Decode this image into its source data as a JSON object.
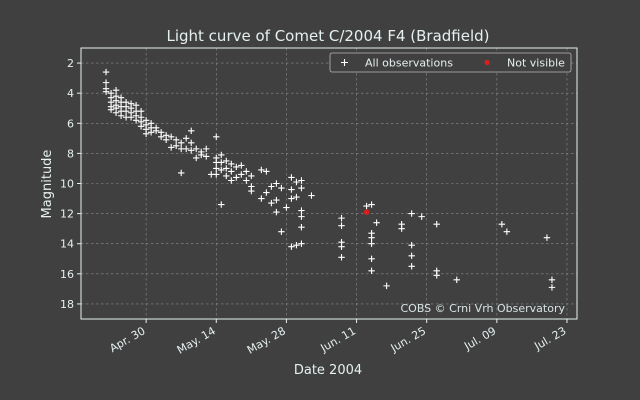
{
  "chart_data": {
    "type": "scatter",
    "title": "Light curve of Comet C/2004 F4 (Bradfield)",
    "xlabel": "Date 2004",
    "ylabel": "Magnitude",
    "x_axis": {
      "type": "date",
      "range": [
        "2004-04-17",
        "2004-07-25"
      ],
      "tick_dates": [
        "2004-04-30",
        "2004-05-14",
        "2004-05-28",
        "2004-06-11",
        "2004-06-25",
        "2004-07-09",
        "2004-07-23"
      ],
      "tick_labels": [
        "Apr. 30",
        "May. 14",
        "May. 28",
        "Jun. 11",
        "Jun. 25",
        "Jul. 09",
        "Jul. 23"
      ]
    },
    "y_axis": {
      "range": [
        1,
        19
      ],
      "inverted": true,
      "ticks": [
        2,
        4,
        6,
        8,
        10,
        12,
        14,
        16,
        18
      ],
      "tick_labels": [
        "2",
        "4",
        "6",
        "8",
        "10",
        "12",
        "14",
        "16",
        "18"
      ]
    },
    "grid": true,
    "legend": {
      "placement": "top-right"
    },
    "annotation": "COBS © Crni Vrh Observatory",
    "series": [
      {
        "name": "All observations",
        "marker": "plus",
        "color": "#ffffff",
        "points": [
          [
            "2004-04-22",
            2.6
          ],
          [
            "2004-04-22",
            3.3
          ],
          [
            "2004-04-22",
            3.7
          ],
          [
            "2004-04-22",
            3.9
          ],
          [
            "2004-04-23",
            4.0
          ],
          [
            "2004-04-23",
            4.3
          ],
          [
            "2004-04-23",
            4.6
          ],
          [
            "2004-04-23",
            4.9
          ],
          [
            "2004-04-23",
            5.1
          ],
          [
            "2004-04-24",
            3.8
          ],
          [
            "2004-04-24",
            4.2
          ],
          [
            "2004-04-24",
            4.5
          ],
          [
            "2004-04-24",
            4.8
          ],
          [
            "2004-04-24",
            5.0
          ],
          [
            "2004-04-24",
            5.3
          ],
          [
            "2004-04-25",
            4.3
          ],
          [
            "2004-04-25",
            4.6
          ],
          [
            "2004-04-25",
            4.9
          ],
          [
            "2004-04-25",
            5.2
          ],
          [
            "2004-04-25",
            5.5
          ],
          [
            "2004-04-26",
            4.6
          ],
          [
            "2004-04-26",
            4.9
          ],
          [
            "2004-04-26",
            5.2
          ],
          [
            "2004-04-26",
            5.6
          ],
          [
            "2004-04-27",
            4.7
          ],
          [
            "2004-04-27",
            5.0
          ],
          [
            "2004-04-27",
            5.3
          ],
          [
            "2004-04-27",
            5.6
          ],
          [
            "2004-04-28",
            4.8
          ],
          [
            "2004-04-28",
            5.2
          ],
          [
            "2004-04-28",
            5.5
          ],
          [
            "2004-04-28",
            5.8
          ],
          [
            "2004-04-29",
            5.2
          ],
          [
            "2004-04-29",
            5.6
          ],
          [
            "2004-04-29",
            5.9
          ],
          [
            "2004-04-29",
            6.2
          ],
          [
            "2004-04-30",
            5.8
          ],
          [
            "2004-04-30",
            6.1
          ],
          [
            "2004-04-30",
            6.4
          ],
          [
            "2004-04-30",
            6.7
          ],
          [
            "2004-05-01",
            6.0
          ],
          [
            "2004-05-01",
            6.3
          ],
          [
            "2004-05-01",
            6.6
          ],
          [
            "2004-05-02",
            6.3
          ],
          [
            "2004-05-02",
            6.5
          ],
          [
            "2004-05-03",
            6.6
          ],
          [
            "2004-05-03",
            6.9
          ],
          [
            "2004-05-04",
            6.8
          ],
          [
            "2004-05-04",
            7.1
          ],
          [
            "2004-05-05",
            6.9
          ],
          [
            "2004-05-05",
            7.6
          ],
          [
            "2004-05-06",
            7.1
          ],
          [
            "2004-05-06",
            7.5
          ],
          [
            "2004-05-07",
            7.3
          ],
          [
            "2004-05-07",
            7.7
          ],
          [
            "2004-05-07",
            9.3
          ],
          [
            "2004-05-08",
            7.0
          ],
          [
            "2004-05-08",
            7.7
          ],
          [
            "2004-05-09",
            6.5
          ],
          [
            "2004-05-09",
            7.3
          ],
          [
            "2004-05-09",
            7.8
          ],
          [
            "2004-05-10",
            7.7
          ],
          [
            "2004-05-10",
            8.3
          ],
          [
            "2004-05-11",
            7.9
          ],
          [
            "2004-05-11",
            8.1
          ],
          [
            "2004-05-12",
            7.7
          ],
          [
            "2004-05-12",
            8.2
          ],
          [
            "2004-05-13",
            9.4
          ],
          [
            "2004-05-14",
            6.9
          ],
          [
            "2004-05-14",
            8.3
          ],
          [
            "2004-05-14",
            8.6
          ],
          [
            "2004-05-14",
            9.0
          ],
          [
            "2004-05-14",
            9.4
          ],
          [
            "2004-05-15",
            8.1
          ],
          [
            "2004-05-15",
            8.6
          ],
          [
            "2004-05-15",
            9.1
          ],
          [
            "2004-05-15",
            11.4
          ],
          [
            "2004-05-16",
            8.5
          ],
          [
            "2004-05-16",
            9.0
          ],
          [
            "2004-05-16",
            9.5
          ],
          [
            "2004-05-17",
            8.7
          ],
          [
            "2004-05-17",
            9.2
          ],
          [
            "2004-05-17",
            9.8
          ],
          [
            "2004-05-18",
            8.9
          ],
          [
            "2004-05-18",
            9.6
          ],
          [
            "2004-05-19",
            8.8
          ],
          [
            "2004-05-19",
            9.4
          ],
          [
            "2004-05-20",
            9.2
          ],
          [
            "2004-05-20",
            9.8
          ],
          [
            "2004-05-21",
            9.5
          ],
          [
            "2004-05-21",
            10.2
          ],
          [
            "2004-05-21",
            10.5
          ],
          [
            "2004-05-23",
            9.1
          ],
          [
            "2004-05-23",
            11.0
          ],
          [
            "2004-05-24",
            9.2
          ],
          [
            "2004-05-24",
            10.6
          ],
          [
            "2004-05-25",
            10.2
          ],
          [
            "2004-05-25",
            11.3
          ],
          [
            "2004-05-26",
            10.0
          ],
          [
            "2004-05-26",
            11.1
          ],
          [
            "2004-05-26",
            11.9
          ],
          [
            "2004-05-27",
            10.3
          ],
          [
            "2004-05-27",
            13.2
          ],
          [
            "2004-05-28",
            11.6
          ],
          [
            "2004-05-29",
            9.6
          ],
          [
            "2004-05-29",
            10.4
          ],
          [
            "2004-05-29",
            11.0
          ],
          [
            "2004-05-29",
            14.2
          ],
          [
            "2004-05-30",
            9.9
          ],
          [
            "2004-05-30",
            10.9
          ],
          [
            "2004-05-30",
            14.1
          ],
          [
            "2004-05-31",
            9.8
          ],
          [
            "2004-05-31",
            10.3
          ],
          [
            "2004-05-31",
            11.8
          ],
          [
            "2004-05-31",
            12.2
          ],
          [
            "2004-05-31",
            12.9
          ],
          [
            "2004-05-31",
            14.0
          ],
          [
            "2004-06-02",
            10.8
          ],
          [
            "2004-06-08",
            12.3
          ],
          [
            "2004-06-08",
            12.8
          ],
          [
            "2004-06-08",
            13.9
          ],
          [
            "2004-06-08",
            14.2
          ],
          [
            "2004-06-08",
            14.9
          ],
          [
            "2004-06-13",
            11.5
          ],
          [
            "2004-06-14",
            11.4
          ],
          [
            "2004-06-14",
            13.3
          ],
          [
            "2004-06-14",
            13.6
          ],
          [
            "2004-06-14",
            14.0
          ],
          [
            "2004-06-14",
            15.0
          ],
          [
            "2004-06-14",
            15.8
          ],
          [
            "2004-06-15",
            12.6
          ],
          [
            "2004-06-17",
            16.8
          ],
          [
            "2004-06-20",
            12.7
          ],
          [
            "2004-06-20",
            13.0
          ],
          [
            "2004-06-22",
            12.0
          ],
          [
            "2004-06-22",
            14.1
          ],
          [
            "2004-06-22",
            14.8
          ],
          [
            "2004-06-22",
            15.5
          ],
          [
            "2004-06-24",
            12.2
          ],
          [
            "2004-06-27",
            12.7
          ],
          [
            "2004-06-27",
            15.8
          ],
          [
            "2004-06-27",
            16.1
          ],
          [
            "2004-07-01",
            16.4
          ],
          [
            "2004-07-10",
            12.7
          ],
          [
            "2004-07-11",
            13.2
          ],
          [
            "2004-07-19",
            13.6
          ],
          [
            "2004-07-20",
            16.4
          ],
          [
            "2004-07-20",
            16.9
          ]
        ]
      },
      {
        "name": "Not visible",
        "marker": "dot",
        "color": "#d62020",
        "points": [
          [
            "2004-06-13",
            11.9
          ]
        ]
      }
    ]
  }
}
